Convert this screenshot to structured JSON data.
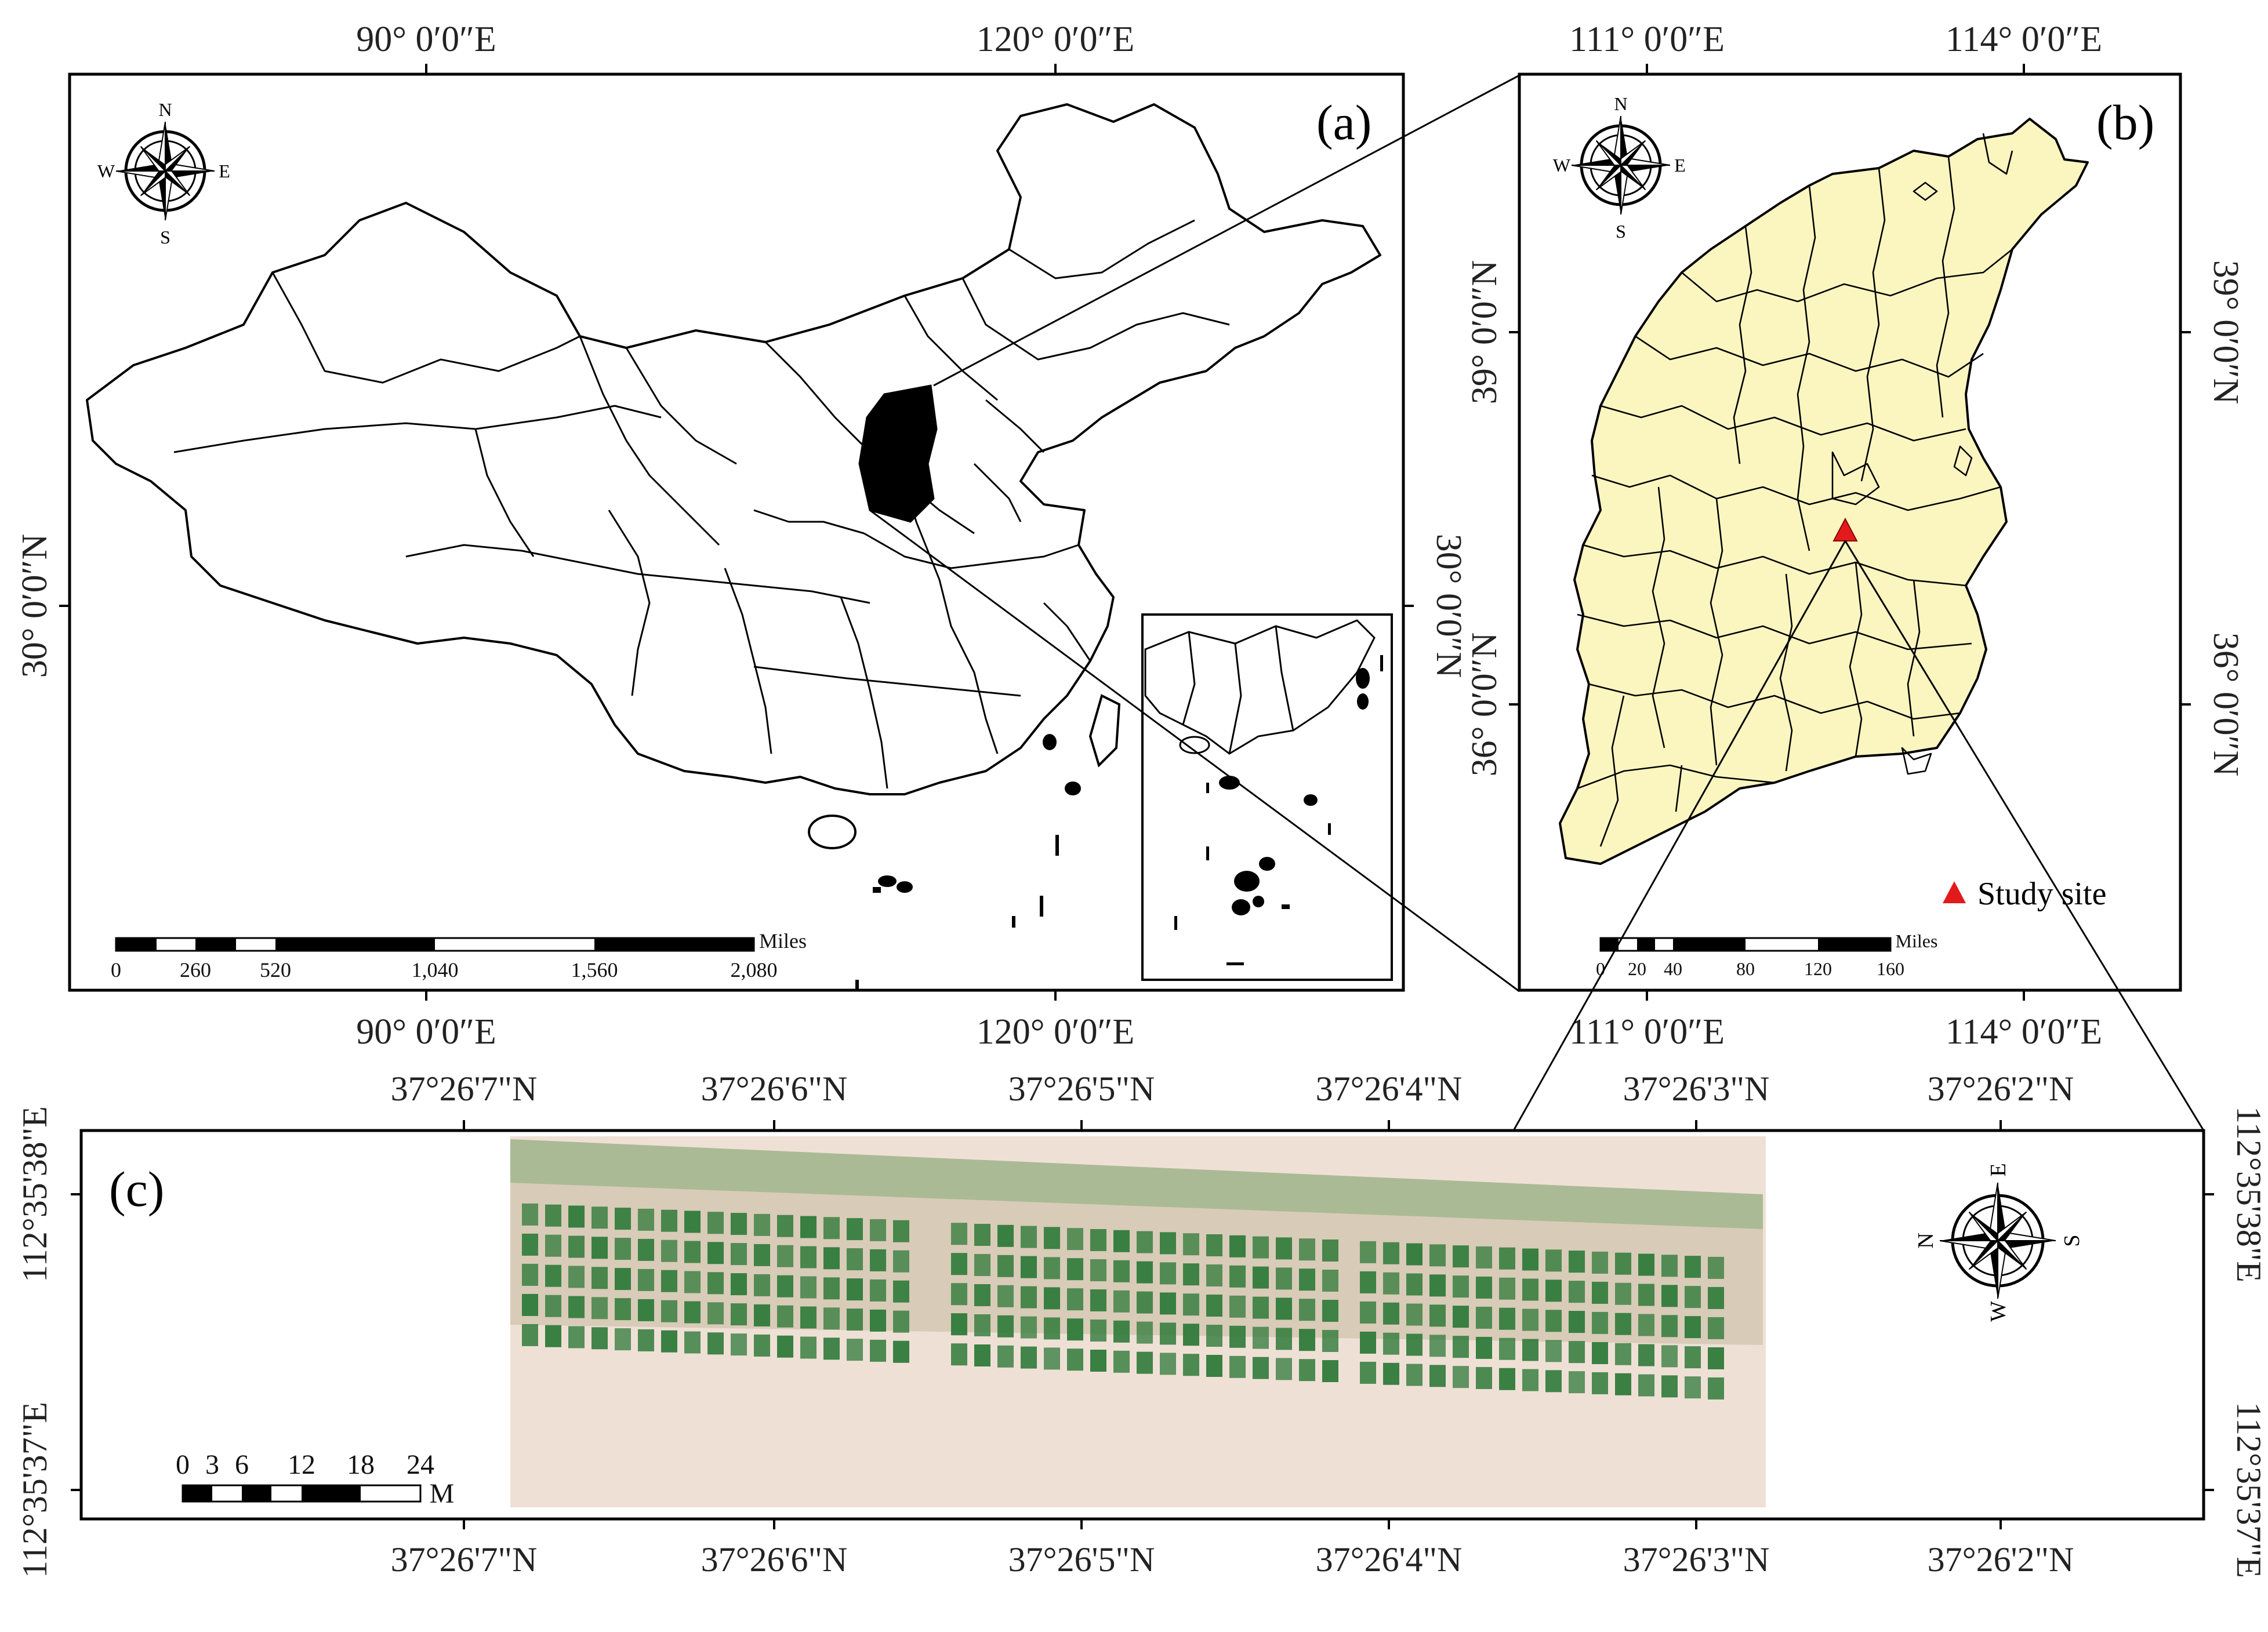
{
  "panel_a": {
    "label": "(a)",
    "top_ticks": [
      "90°  0′0″E",
      "120°  0′0″E"
    ],
    "bottom_ticks": [
      "90°  0′0″E",
      "120°  0′0″E"
    ],
    "left_tick": "30°  0′0″N",
    "right_tick": "30°  0′0″N",
    "scale_labels": [
      "0",
      "260",
      "520",
      "1,040",
      "1,560",
      "2,080"
    ],
    "scale_unit": "Miles",
    "compass": {
      "n": "N",
      "s": "S",
      "e": "E",
      "w": "W"
    }
  },
  "panel_b": {
    "label": "(b)",
    "top_ticks": [
      "111°  0′0″E",
      "114°  0′0″E"
    ],
    "bottom_ticks": [
      "111°  0′0″E",
      "114°  0′0″E"
    ],
    "left_ticks": [
      "39°  0′0″N",
      "36°  0′0″N"
    ],
    "right_ticks": [
      "39°  0′0″N",
      "36°  0′0″N"
    ],
    "legend_label": "Study site",
    "scale_labels": [
      "0",
      "20",
      "40",
      "80",
      "120",
      "160"
    ],
    "scale_unit": "Miles",
    "compass": {
      "n": "N",
      "s": "S",
      "e": "E",
      "w": "W"
    },
    "colors": {
      "province_fill": "#fbf5c0",
      "study_site": "#e31a1c"
    }
  },
  "panel_c": {
    "label": "(c)",
    "top_ticks": [
      "37°26'7\"N",
      "37°26'6\"N",
      "37°26'5\"N",
      "37°26'4\"N",
      "37°26'3\"N",
      "37°26'2\"N"
    ],
    "bottom_ticks": [
      "37°26'7\"N",
      "37°26'6\"N",
      "37°26'5\"N",
      "37°26'4\"N",
      "37°26'3\"N",
      "37°26'2\"N"
    ],
    "left_ticks": [
      "112°35'38\"E",
      "112°35'37\"E"
    ],
    "right_ticks": [
      "112°35'38\"E",
      "112°35'37\"E"
    ],
    "scale_labels": [
      "0",
      "3",
      "6",
      "12",
      "18",
      "24"
    ],
    "scale_unit": "M",
    "compass": {
      "n": "N",
      "s": "S",
      "e": "E",
      "w": "W"
    },
    "colors": {
      "plot_green": "#2f7a3a",
      "soil": "#e9d5c9"
    }
  }
}
